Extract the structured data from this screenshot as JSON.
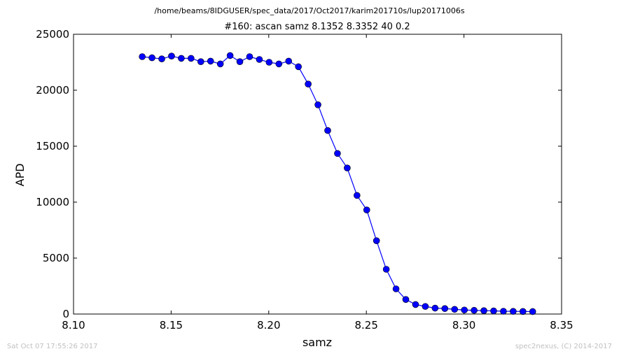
{
  "chart_data": {
    "type": "line",
    "suptitle": "/home/beams/8IDGUSER/spec_data/2017/Oct2017/karim201710s/lup20171006s",
    "title": "#160: ascan  samz 8.1352 8.3352  40 0.2",
    "xlabel": "samz",
    "ylabel": "APD",
    "xlim": [
      8.1,
      8.35
    ],
    "ylim": [
      0,
      25000
    ],
    "xticks": [
      "8.10",
      "8.15",
      "8.20",
      "8.25",
      "8.30",
      "8.35"
    ],
    "yticks": [
      "0",
      "5000",
      "10000",
      "15000",
      "20000",
      "25000"
    ],
    "grid": false,
    "legend": "none",
    "series_color": "#0000ff",
    "marker": "circle",
    "x": [
      8.1352,
      8.1402,
      8.1452,
      8.1502,
      8.1552,
      8.1602,
      8.1652,
      8.1702,
      8.1752,
      8.1802,
      8.1852,
      8.1902,
      8.1952,
      8.2002,
      8.2052,
      8.2102,
      8.2152,
      8.2202,
      8.2252,
      8.2302,
      8.2352,
      8.2402,
      8.2452,
      8.2502,
      8.2552,
      8.2602,
      8.2652,
      8.2702,
      8.2752,
      8.2802,
      8.2852,
      8.2902,
      8.2952,
      8.3002,
      8.3052,
      8.3102,
      8.3152,
      8.3202,
      8.3252,
      8.3302,
      8.3352
    ],
    "y": [
      23000,
      22900,
      22800,
      23050,
      22850,
      22850,
      22550,
      22600,
      22350,
      23100,
      22550,
      23000,
      22750,
      22500,
      22350,
      22600,
      22100,
      20550,
      18700,
      16400,
      14350,
      13050,
      10600,
      9300,
      6550,
      4000,
      2250,
      1300,
      850,
      680,
      530,
      490,
      420,
      360,
      330,
      300,
      280,
      250,
      240,
      230,
      220
    ]
  },
  "footer": {
    "timestamp": "Sat Oct 07 17:55:26 2017",
    "credit": "spec2nexus, (C) 2014-2017"
  }
}
